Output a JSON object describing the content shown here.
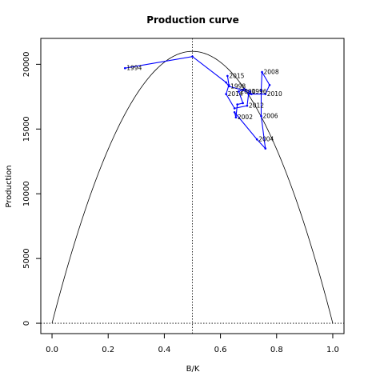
{
  "chart_data": {
    "type": "line",
    "title": "Production curve",
    "xlabel": "B/K",
    "ylabel": "Production",
    "xlim": [
      -0.04,
      1.04
    ],
    "ylim": [
      -800,
      22000
    ],
    "x_ticks": [
      0.0,
      0.2,
      0.4,
      0.6,
      0.8,
      1.0
    ],
    "x_tick_labels": [
      "0.0",
      "0.2",
      "0.4",
      "0.6",
      "0.8",
      "1.0"
    ],
    "y_ticks": [
      0,
      5000,
      10000,
      15000,
      20000
    ],
    "y_tick_labels": [
      "0",
      "5000",
      "10000",
      "15000",
      "20000"
    ],
    "curve": {
      "type": "parabola",
      "msy": 21000,
      "bmsy_ratio": 0.5
    },
    "reference_lines": {
      "vertical_x": 0.5,
      "horizontal_y": 0
    },
    "series": [
      {
        "color": "#0000ff",
        "points": [
          {
            "label": "1994",
            "x": 0.26,
            "y": 19700
          },
          {
            "label": "",
            "x": 0.5,
            "y": 20600
          },
          {
            "label": "",
            "x": 0.62,
            "y": 18600
          },
          {
            "label": "1998",
            "x": 0.63,
            "y": 18300
          },
          {
            "label": "",
            "x": 0.68,
            "y": 18000
          },
          {
            "label": "",
            "x": 0.71,
            "y": 17700
          },
          {
            "label": "1996",
            "x": 0.705,
            "y": 17900
          },
          {
            "label": "",
            "x": 0.685,
            "y": 18100
          },
          {
            "label": "2000",
            "x": 0.665,
            "y": 17900
          },
          {
            "label": "",
            "x": 0.68,
            "y": 17000
          },
          {
            "label": "",
            "x": 0.66,
            "y": 16900
          },
          {
            "label": "2002",
            "x": 0.655,
            "y": 15900
          },
          {
            "label": "",
            "x": 0.65,
            "y": 16300
          },
          {
            "label": "2004",
            "x": 0.73,
            "y": 14200
          },
          {
            "label": "",
            "x": 0.76,
            "y": 13500
          },
          {
            "label": "2006",
            "x": 0.745,
            "y": 16000
          },
          {
            "label": "",
            "x": 0.745,
            "y": 18000
          },
          {
            "label": "2008",
            "x": 0.748,
            "y": 19400
          },
          {
            "label": "",
            "x": 0.775,
            "y": 18400
          },
          {
            "label": "2010",
            "x": 0.76,
            "y": 17700
          },
          {
            "label": "",
            "x": 0.7,
            "y": 17700
          },
          {
            "label": "2012",
            "x": 0.695,
            "y": 16800
          },
          {
            "label": "",
            "x": 0.65,
            "y": 16600
          },
          {
            "label": "2014",
            "x": 0.62,
            "y": 17700
          },
          {
            "label": "",
            "x": 0.63,
            "y": 18400
          },
          {
            "label": "2015",
            "x": 0.625,
            "y": 19100
          }
        ]
      }
    ]
  }
}
